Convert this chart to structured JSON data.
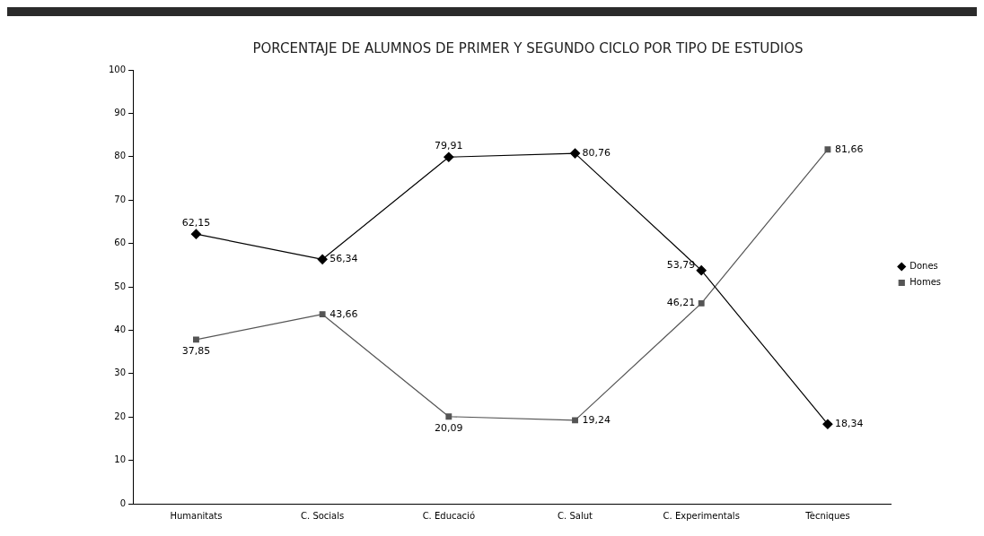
{
  "chart_data": {
    "type": "line",
    "title": "PORCENTAJE DE ALUMNOS DE PRIMER Y SEGUNDO CICLO POR TIPO DE ESTUDIOS",
    "categories": [
      "Humanitats",
      "C. Socials",
      "C. Educació",
      "C. Salut",
      "C. Experimentals",
      "Tècniques"
    ],
    "series": [
      {
        "name": "Dones",
        "color": "#000000",
        "marker": "diamond",
        "values": [
          62.15,
          56.34,
          79.91,
          80.76,
          53.79,
          18.34
        ],
        "value_labels": [
          "62,15",
          "56,34",
          "79,91",
          "80,76",
          "53,79",
          "18,34"
        ]
      },
      {
        "name": "Homes",
        "color": "#555555",
        "marker": "square",
        "values": [
          37.85,
          43.66,
          20.09,
          19.24,
          46.21,
          81.66
        ],
        "value_labels": [
          "37,85",
          "43,66",
          "20,09",
          "19,24",
          "46,21",
          "81,66"
        ]
      }
    ],
    "ylim": [
      0,
      100
    ],
    "yticks": [
      0,
      10,
      20,
      30,
      40,
      50,
      60,
      70,
      80,
      90,
      100
    ],
    "grid": false,
    "legend": "right",
    "line_style": "solid"
  }
}
